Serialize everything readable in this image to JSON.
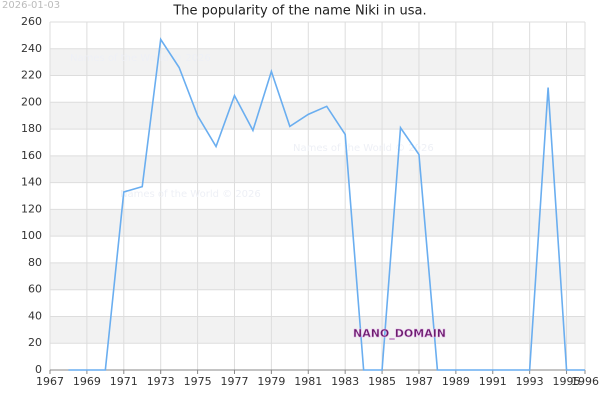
{
  "chart_data": {
    "type": "line",
    "title": "The popularity of the name Niki in usa.",
    "date_stamp": "2026-01-03",
    "watermark": "NANO_DOMAIN",
    "annotations": [
      "Names of the World © 2026",
      "Names of the World © 2026",
      "Names of the World © 2026"
    ],
    "x": [
      1968,
      1969,
      1970,
      1971,
      1972,
      1973,
      1974,
      1975,
      1976,
      1977,
      1978,
      1979,
      1980,
      1981,
      1982,
      1983,
      1984,
      1985,
      1986,
      1987,
      1988,
      1989,
      1990,
      1991,
      1992,
      1993,
      1994,
      1995,
      1996
    ],
    "series": [
      {
        "name": "Niki",
        "color": "#6aaef0",
        "values": [
          0,
          0,
          0,
          133,
          137,
          247,
          226,
          190,
          167,
          205,
          179,
          223,
          182,
          191,
          197,
          176,
          0,
          0,
          181,
          161,
          0,
          0,
          0,
          0,
          0,
          0,
          211,
          0,
          0
        ]
      }
    ],
    "xlim": [
      1967,
      1996
    ],
    "xticks": [
      1967,
      1969,
      1971,
      1973,
      1975,
      1977,
      1979,
      1981,
      1983,
      1985,
      1987,
      1989,
      1991,
      1993,
      1995,
      1996
    ],
    "ylim": [
      0,
      260
    ],
    "yticks": [
      0,
      20,
      40,
      60,
      80,
      100,
      120,
      140,
      160,
      180,
      200,
      220,
      240,
      260
    ],
    "grid": true
  }
}
